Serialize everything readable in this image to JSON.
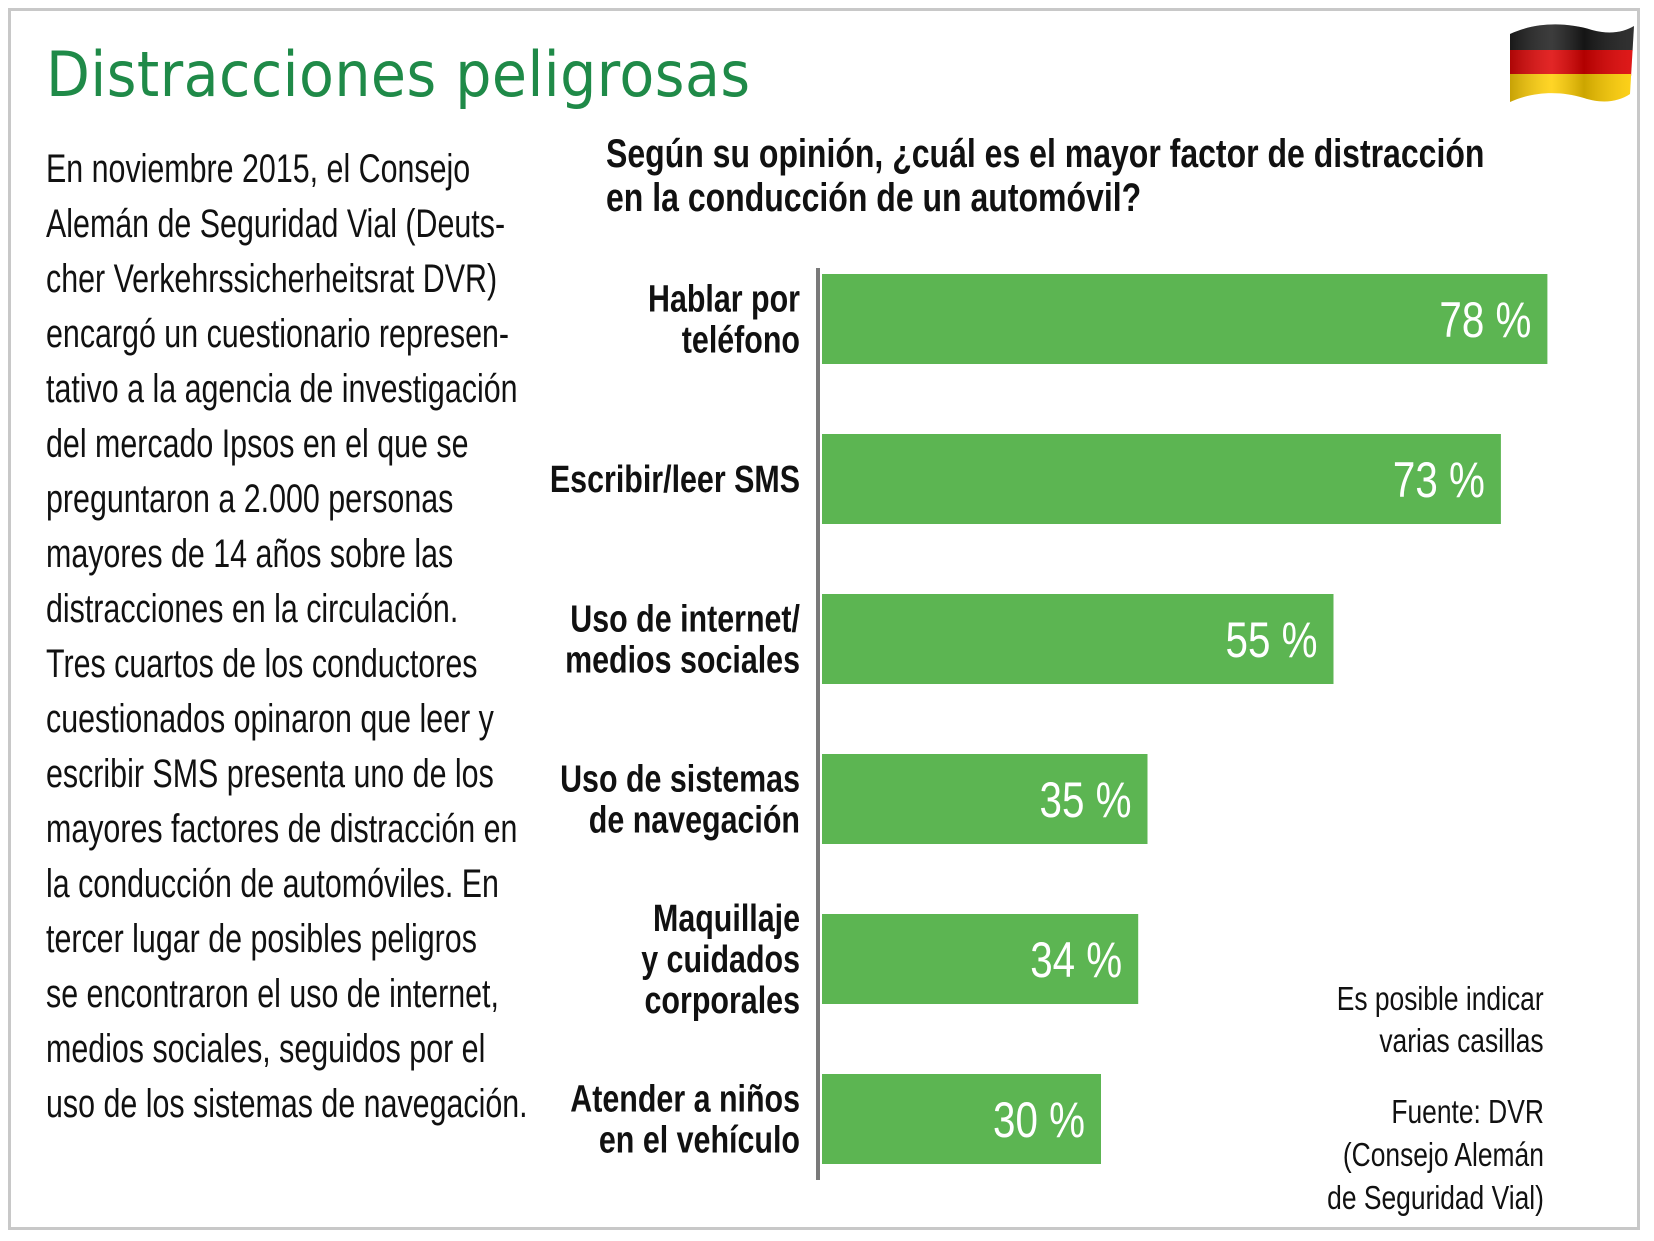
{
  "title": "Distracciones peligrosas",
  "body_lines": [
    "En noviembre 2015, el Consejo",
    "Alemán de Seguridad Vial (Deuts-",
    "cher Verkehrssicherheitsrat DVR)",
    "encargó un cuestionario represen-",
    "tativo a la agencia de investigación",
    "del mercado Ipsos en el que se",
    "preguntaron a 2.000 personas",
    "mayores de 14 años sobre las",
    "distracciones en la circulación.",
    "Tres cuartos de los conductores",
    "cuestionados opinaron que leer y",
    "escribir SMS presenta uno de los",
    "mayores factores de distracción en",
    "la conducción de automóviles. En",
    "tercer lugar de posibles peligros",
    "se encontraron el uso de internet,",
    "medios sociales, seguidos por el",
    "uso de los sistemas de navegación."
  ],
  "flag_icon": "germany-flag-icon",
  "colors": {
    "title": "#1f8a48",
    "bar": "#5cb552",
    "axis": "#7a7a7a",
    "flag_black": "#1a1a1a",
    "flag_red": "#dd0000",
    "flag_gold": "#ffce00"
  },
  "footnote": [
    "Es posible indicar",
    "varias casillas"
  ],
  "source": [
    "Fuente: DVR",
    "(Consejo Alemán",
    "de Seguridad Vial)"
  ],
  "chart_data": {
    "type": "bar",
    "orientation": "horizontal",
    "title": [
      "Según su opinión, ¿cuál es el mayor factor de distracción",
      "en la conducción de un automóvil?"
    ],
    "categories": [
      [
        "Hablar por",
        "teléfono"
      ],
      [
        "Escribir/leer SMS"
      ],
      [
        "Uso de internet/",
        "medios sociales"
      ],
      [
        "Uso de sistemas",
        "de navegación"
      ],
      [
        "Maquillaje",
        "y cuidados",
        "corporales"
      ],
      [
        "Atender a niños",
        "en el vehículo"
      ]
    ],
    "values": [
      78,
      73,
      55,
      35,
      34,
      30
    ],
    "value_labels": [
      "78 %",
      "73 %",
      "55 %",
      "35 %",
      "34 %",
      "30 %"
    ],
    "unit": "%",
    "xlim": [
      0,
      100
    ],
    "grid": false,
    "legend": "none"
  }
}
